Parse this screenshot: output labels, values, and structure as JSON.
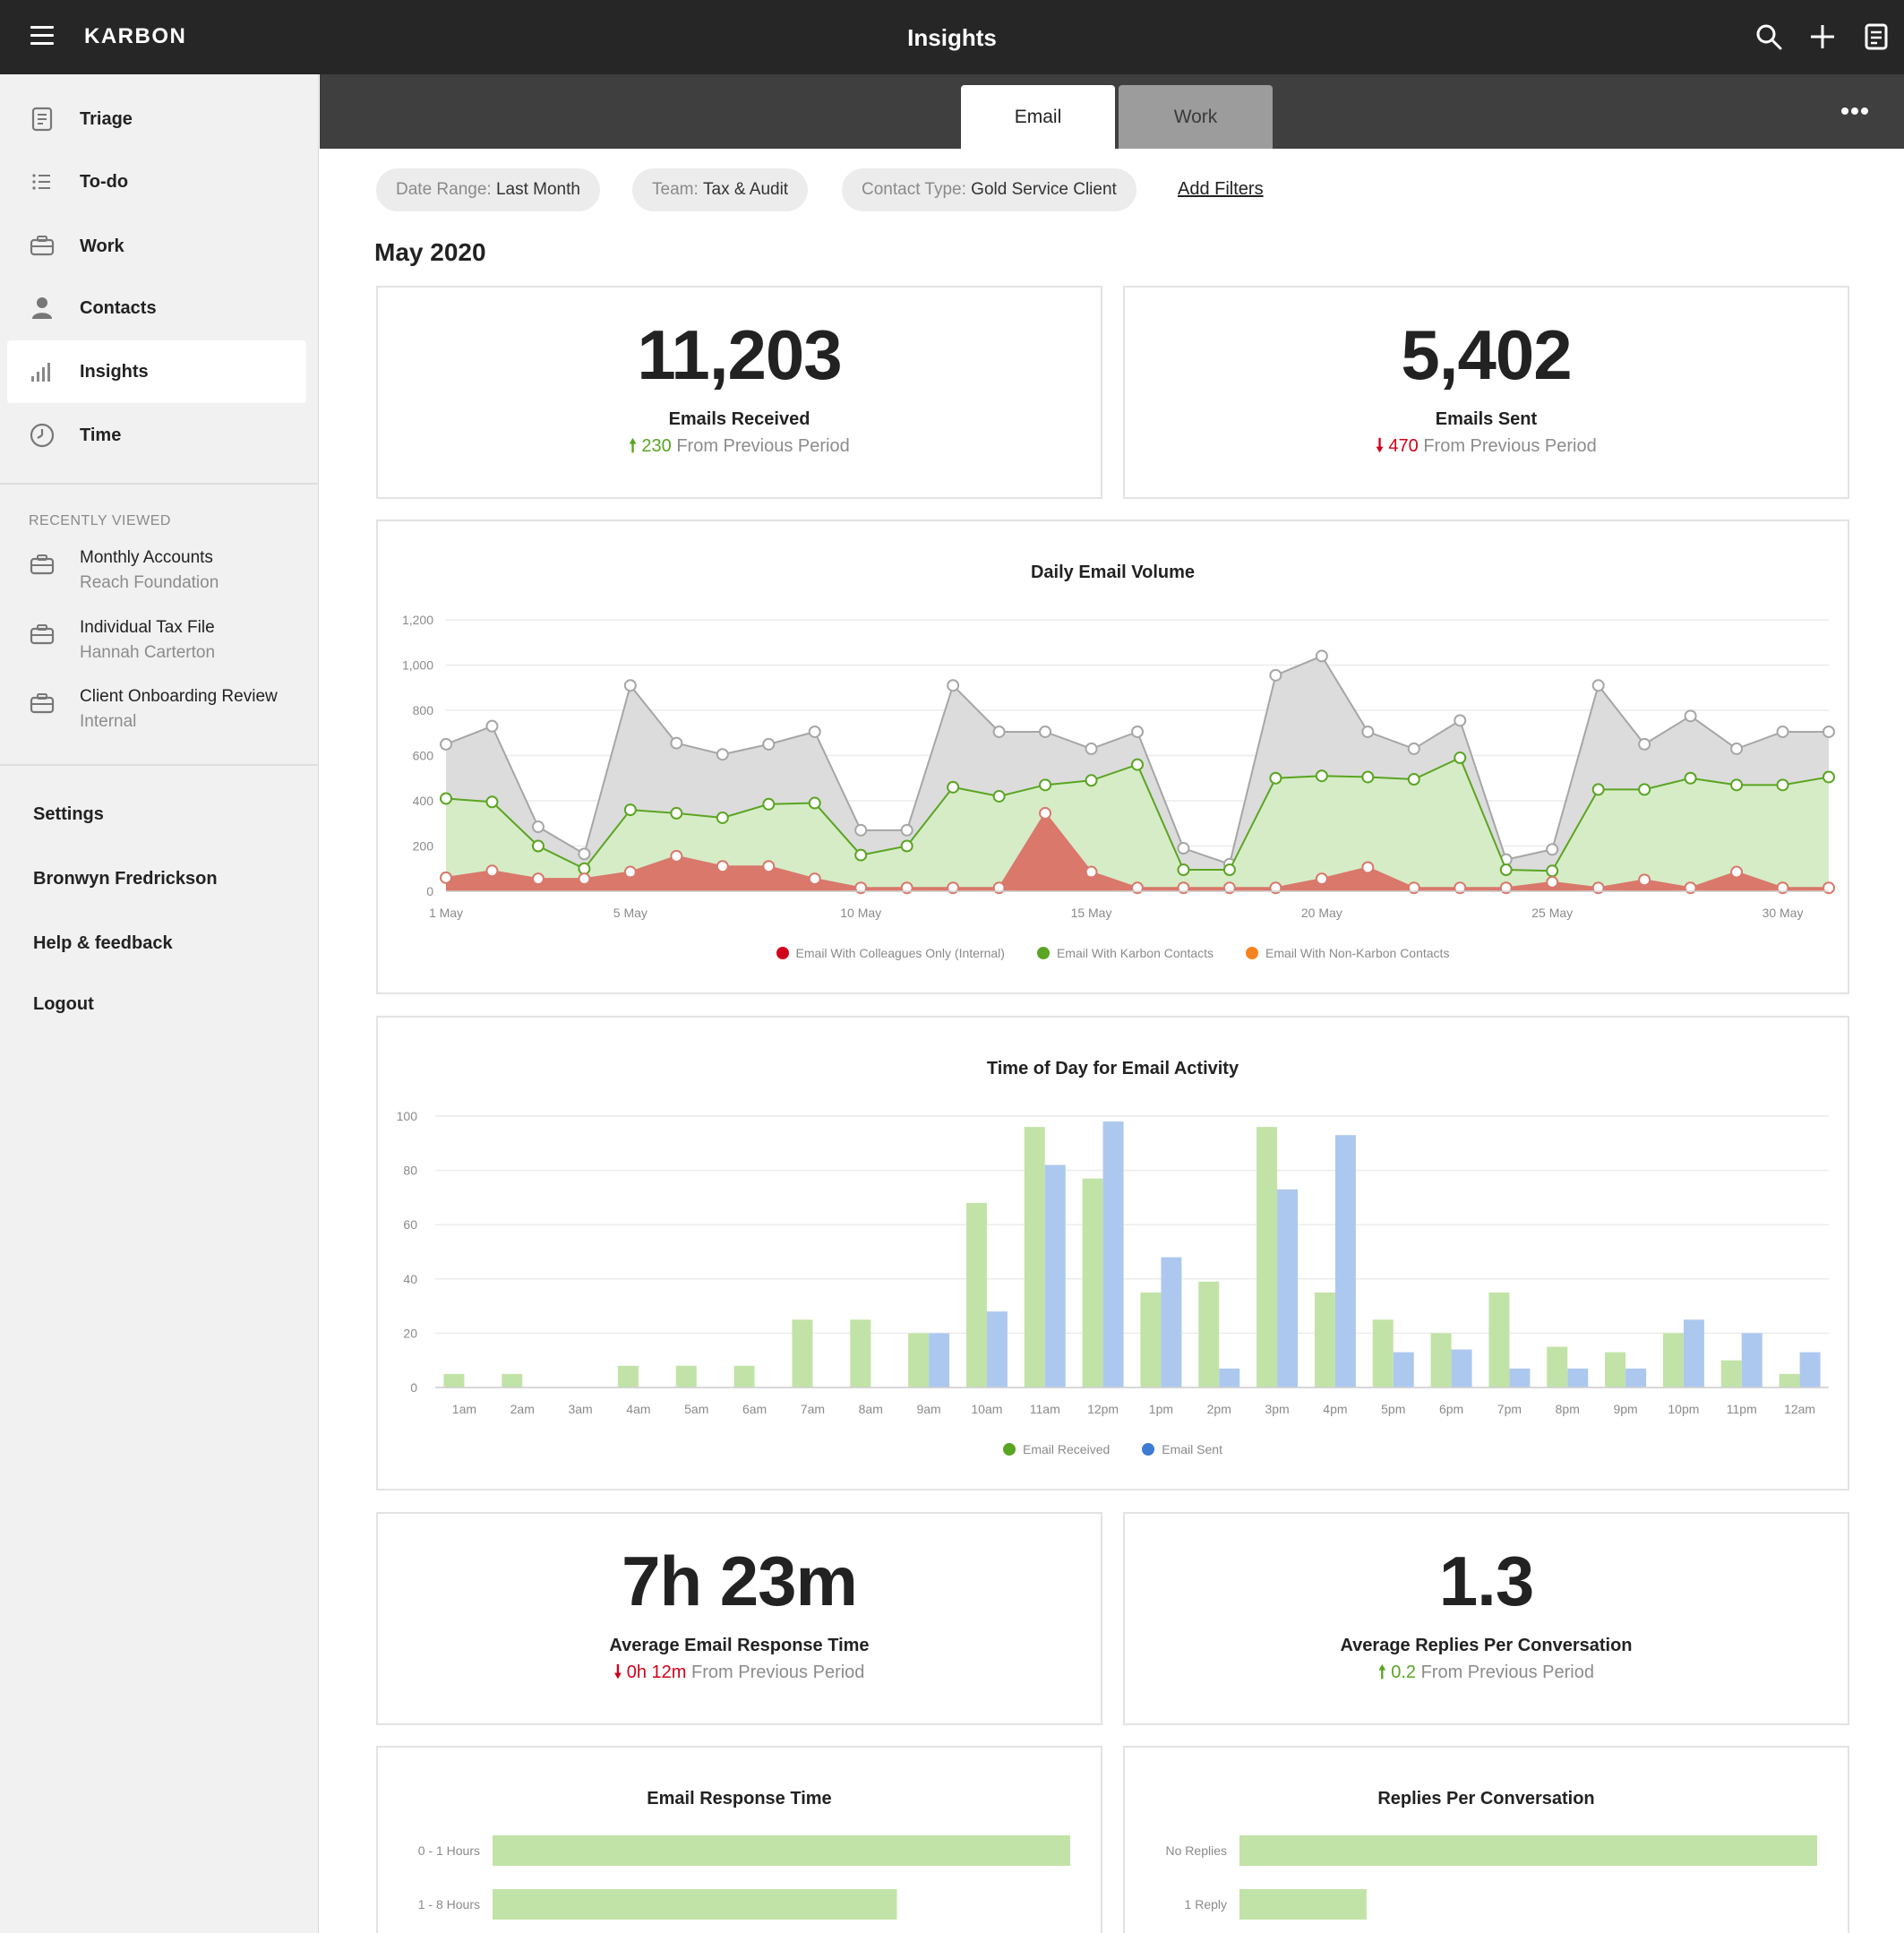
{
  "topbar": {
    "brand": "KARBON",
    "title": "Insights"
  },
  "sidebar": {
    "items": [
      {
        "label": "Triage"
      },
      {
        "label": "To-do"
      },
      {
        "label": "Work"
      },
      {
        "label": "Contacts"
      },
      {
        "label": "Insights"
      },
      {
        "label": "Time"
      }
    ],
    "recently_viewed_heading": "RECENTLY VIEWED",
    "recent": [
      {
        "title": "Monthly Accounts",
        "subtitle": "Reach Foundation"
      },
      {
        "title": "Individual Tax File",
        "subtitle": "Hannah Carterton"
      },
      {
        "title": "Client Onboarding Review",
        "subtitle": "Internal"
      }
    ],
    "bottom": {
      "settings": "Settings",
      "user": "Bronwyn Fredrickson",
      "help": "Help & feedback",
      "logout": "Logout"
    }
  },
  "tabs": {
    "email": "Email",
    "work": "Work"
  },
  "filters": {
    "date": {
      "key": "Date Range:",
      "value": "Last Month"
    },
    "team": {
      "key": "Team:",
      "value": "Tax & Audit"
    },
    "contact": {
      "key": "Contact Type:",
      "value": "Gold Service Client"
    },
    "add": "Add Filters"
  },
  "period": "May 2020",
  "kpis": {
    "received": {
      "value": "11,203",
      "label": "Emails Received",
      "delta": "230",
      "suffix": "From Previous Period",
      "direction": "up"
    },
    "sent": {
      "value": "5,402",
      "label": "Emails Sent",
      "delta": "470",
      "suffix": "From Previous Period",
      "direction": "down"
    },
    "response": {
      "value": "7h 23m",
      "label": "Average Email Response Time",
      "delta": "0h 12m",
      "suffix": "From Previous Period",
      "direction": "down"
    },
    "replies": {
      "value": "1.3",
      "label": "Average Replies Per Conversation",
      "delta": "0.2",
      "suffix": "From Previous Period",
      "direction": "up"
    }
  },
  "colors": {
    "topbar": "#262626",
    "up": "#5aa522",
    "down": "#d0021b",
    "green_fill": "#d9efcc",
    "green_line": "#5aa522",
    "red_fill": "#d9786b",
    "grey_fill": "#dcdcdc",
    "bar_green": "#c2e3a7",
    "bar_blue": "#adc8ef"
  },
  "icons": {
    "menu": "hamburger-icon",
    "search": "search-icon",
    "add": "plus-icon",
    "notes": "document-icon",
    "more": "more-dots-icon"
  },
  "chart_data": [
    {
      "type": "area",
      "title": "Daily Email Volume",
      "ylim": [
        0,
        1200
      ],
      "yticks": [
        "0",
        "200",
        "400",
        "600",
        "800",
        "1,000",
        "1,200"
      ],
      "x": [
        1,
        2,
        3,
        4,
        5,
        6,
        7,
        8,
        9,
        10,
        11,
        12,
        13,
        14,
        15,
        16,
        17,
        18,
        19,
        20,
        21,
        22,
        23,
        24,
        25,
        26,
        27,
        28,
        29,
        30,
        31
      ],
      "xtick_labels": [
        "1 May",
        "5 May",
        "10 May",
        "15 May",
        "20 May",
        "25 May",
        "30 May"
      ],
      "xtick_days": [
        1,
        5,
        10,
        15,
        20,
        25,
        30
      ],
      "series": [
        {
          "name": "Email With Colleagues Only (Internal)",
          "color": "#d0021b",
          "values": [
            60,
            90,
            55,
            55,
            85,
            155,
            110,
            110,
            55,
            15,
            15,
            15,
            15,
            345,
            85,
            15,
            15,
            15,
            15,
            55,
            105,
            15,
            15,
            15,
            40,
            15,
            50,
            15,
            85,
            15,
            15
          ]
        },
        {
          "name": "Email With Karbon Contacts",
          "color": "#5aa522",
          "values": [
            410,
            395,
            200,
            100,
            360,
            345,
            325,
            385,
            390,
            160,
            200,
            460,
            420,
            470,
            490,
            560,
            95,
            95,
            500,
            510,
            505,
            495,
            590,
            95,
            90,
            450,
            450,
            500,
            470,
            470,
            505
          ]
        },
        {
          "name": "Email With Non-Karbon Contacts",
          "color": "#f5841f",
          "values": [
            650,
            730,
            285,
            165,
            910,
            655,
            605,
            650,
            705,
            270,
            270,
            910,
            705,
            705,
            630,
            705,
            190,
            120,
            955,
            1040,
            705,
            630,
            755,
            140,
            185,
            910,
            650,
            775,
            630,
            705,
            705
          ]
        }
      ],
      "legend_position": "bottom"
    },
    {
      "type": "bar",
      "title": "Time of Day for Email Activity",
      "ylim": [
        0,
        100
      ],
      "yticks": [
        "0",
        "20",
        "40",
        "60",
        "80",
        "100"
      ],
      "categories": [
        "1am",
        "2am",
        "3am",
        "4am",
        "5am",
        "6am",
        "7am",
        "8am",
        "9am",
        "10am",
        "11am",
        "12pm",
        "1pm",
        "2pm",
        "3pm",
        "4pm",
        "5pm",
        "6pm",
        "7pm",
        "8pm",
        "9pm",
        "10pm",
        "11pm",
        "12am"
      ],
      "series": [
        {
          "name": "Email Received",
          "color": "#5aa522",
          "values": [
            5,
            5,
            0,
            8,
            8,
            8,
            25,
            25,
            20,
            68,
            96,
            77,
            35,
            39,
            96,
            35,
            25,
            20,
            35,
            15,
            13,
            20,
            10,
            5
          ]
        },
        {
          "name": "Email Sent",
          "color": "#3b7bd4",
          "values": [
            0,
            0,
            0,
            0,
            0,
            0,
            0,
            0,
            20,
            28,
            82,
            98,
            48,
            7,
            73,
            93,
            13,
            14,
            7,
            7,
            7,
            25,
            20,
            13
          ]
        }
      ],
      "legend_position": "bottom"
    },
    {
      "type": "bar",
      "title": "Email Response Time",
      "categories": [
        "0 - 1 Hours",
        "1 - 8 Hours"
      ],
      "values": [
        100,
        70
      ]
    },
    {
      "type": "bar",
      "title": "Replies Per Conversation",
      "categories": [
        "No Replies",
        "1 Reply"
      ],
      "values": [
        100,
        22
      ]
    }
  ]
}
